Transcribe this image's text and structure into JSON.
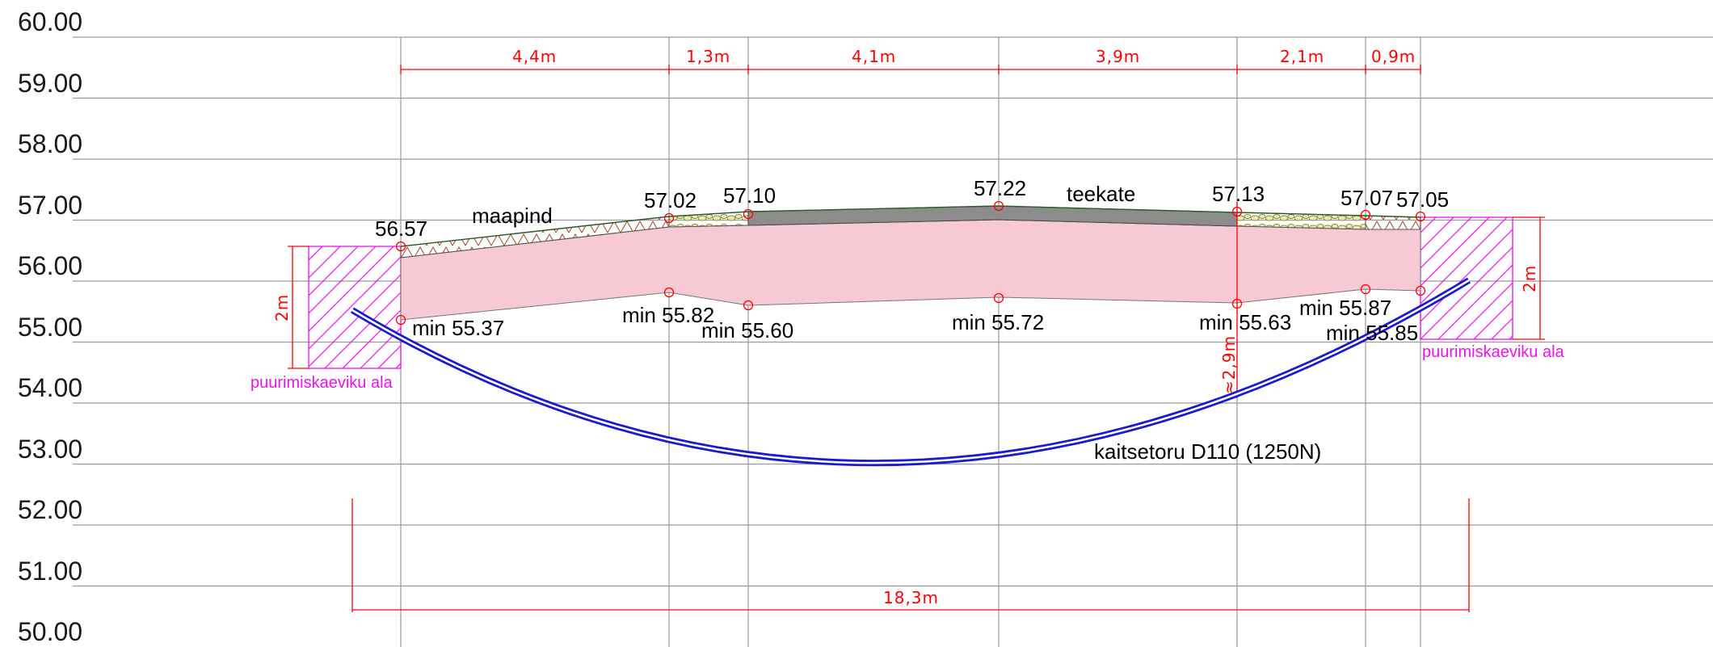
{
  "y_axis": {
    "labels": [
      "60.00",
      "59.00",
      "58.00",
      "57.00",
      "56.00",
      "55.00",
      "54.00",
      "53.00",
      "52.00",
      "51.00",
      "50.00"
    ]
  },
  "dimensions_top": [
    "4,4m",
    "1,3m",
    "4,1m",
    "3,9m",
    "2,1m",
    "0,9m"
  ],
  "dimension_total": "18,3m",
  "surface_levels": [
    "56.57",
    "57.02",
    "57.10",
    "57.22",
    "57.13",
    "57.07",
    "57.05"
  ],
  "min_levels": [
    "min 55.37",
    "min 55.82",
    "min 55.60",
    "min 55.72",
    "min 55.63",
    "min 55.87",
    "min 55.85"
  ],
  "labels": {
    "ground": "maapind",
    "pavement": "teekate",
    "pipe": "kaitsetoru D110 (1250N)",
    "pit_left": "puurimiskaeviku ala",
    "pit_right": "puurimiskaeviku ala",
    "pit_depth_left": "2m",
    "pit_depth_right": "2m",
    "depth_dim": "≈2,9m"
  },
  "colors": {
    "dimension": "#ff0000",
    "pit": "#ee11ee",
    "pipe": "#1a1ad0",
    "fill_zone": "#f6c9d4",
    "pavement": "#8c8c8c",
    "grid": "#9a9a9a"
  }
}
